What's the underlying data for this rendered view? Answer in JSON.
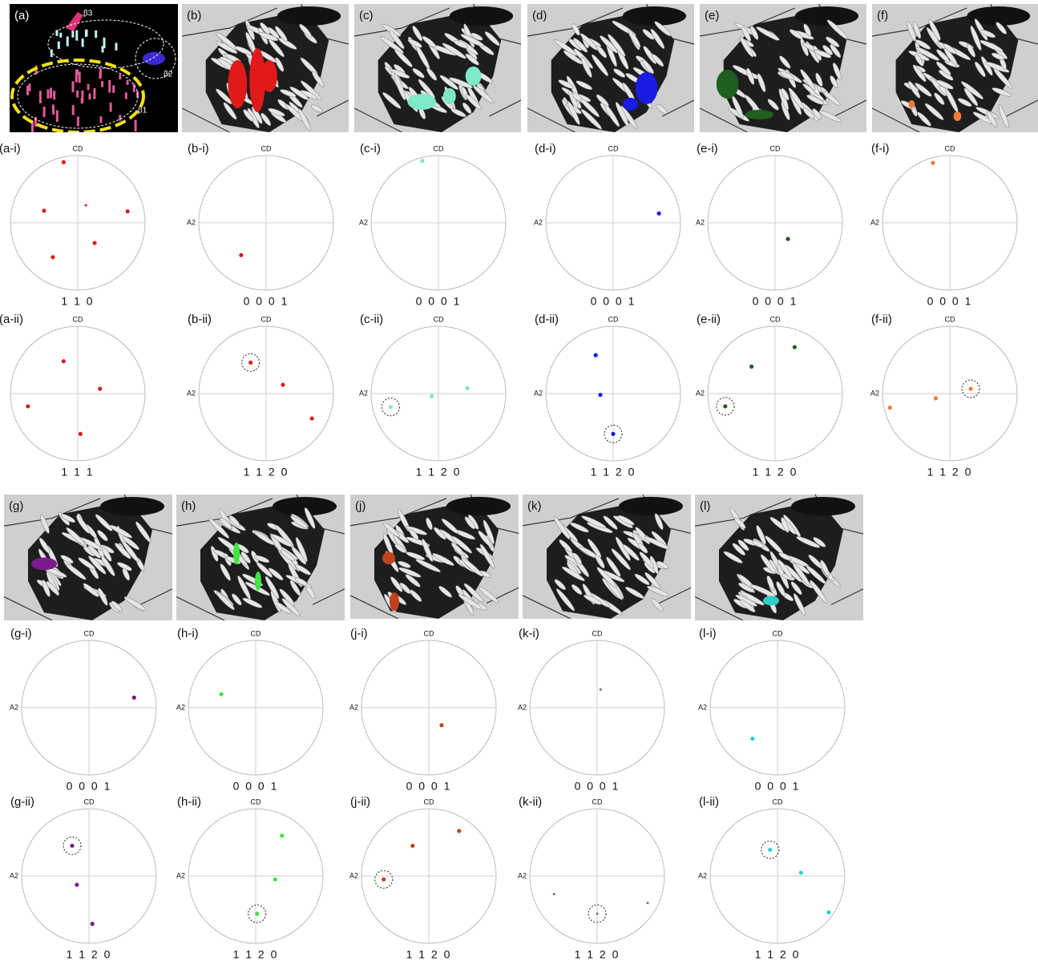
{
  "panels": [
    {
      "label": "(a)",
      "image_text": [
        "β3",
        "β2",
        "β1"
      ],
      "figures": [
        {
          "label": "(a-i)",
          "top": "CD",
          "index": "1 1 0"
        },
        {
          "label": "(a-ii)",
          "top": "CD",
          "index": "1 1 1"
        }
      ]
    },
    {
      "label": "(b)",
      "figures": [
        {
          "label": "(b-i)",
          "top": "CD",
          "left": "A2",
          "index": "0 0 0 1"
        },
        {
          "label": "(b-ii)",
          "top": "CD",
          "left": "A2",
          "index": "1 1 2 0"
        }
      ]
    },
    {
      "label": "(c)",
      "figures": [
        {
          "label": "(c-i)",
          "top": "CD",
          "left": "A2",
          "index": "0 0 0 1"
        },
        {
          "label": "(c-ii)",
          "top": "CD",
          "left": "A2",
          "index": "1 1 2 0"
        }
      ]
    },
    {
      "label": "(d)",
      "figures": [
        {
          "label": "(d-i)",
          "top": "CD",
          "left": "A2",
          "index": "0 0 0 1"
        },
        {
          "label": "(d-ii)",
          "top": "CD",
          "left": "A2",
          "index": "1 1 2 0"
        }
      ]
    },
    {
      "label": "(e)",
      "figures": [
        {
          "label": "(e-i)",
          "top": "CD",
          "left": "A2",
          "index": "0 0 0 1"
        },
        {
          "label": "(e-ii)",
          "top": "CD",
          "left": "A2",
          "index": "1 1 2 0"
        }
      ]
    },
    {
      "label": "(f)",
      "figures": [
        {
          "label": "(f-i)",
          "top": "CD",
          "left": "A2",
          "index": "0 0 0 1"
        },
        {
          "label": "(f-ii)",
          "top": "CD",
          "left": "A2",
          "index": "1 1 2 0"
        }
      ]
    },
    {
      "label": "(g)",
      "figures": [
        {
          "label": "(g-i)",
          "top": "CD",
          "left": "A2",
          "index": "0 0 0 1"
        },
        {
          "label": "(g-ii)",
          "top": "CD",
          "left": "A2",
          "index": "1 1 2 0"
        }
      ]
    },
    {
      "label": "(h)",
      "figures": [
        {
          "label": "(h-i)",
          "top": "CD",
          "left": "A2",
          "index": "0 0 0 1"
        },
        {
          "label": "(h-ii)",
          "top": "CD",
          "left": "A2",
          "index": "1 1 2 0"
        }
      ]
    },
    {
      "label": "(j)",
      "figures": [
        {
          "label": "(j-i)",
          "top": "CD",
          "left": "A2",
          "index": "0 0 0 1"
        },
        {
          "label": "(j-ii)",
          "top": "CD",
          "left": "A2",
          "index": "1 1 2 0"
        }
      ]
    },
    {
      "label": "(k)",
      "figures": [
        {
          "label": "(k-i)",
          "top": "CD",
          "left": "A2",
          "index": "0 0 0 1"
        },
        {
          "label": "(k-ii)",
          "top": "CD",
          "left": "A2",
          "index": "1 1 2 0"
        }
      ]
    },
    {
      "label": "(l)",
      "figures": [
        {
          "label": "(l-i)",
          "top": "CD",
          "left": "A2",
          "index": "0 0 0 1"
        },
        {
          "label": "(l-ii)",
          "top": "CD",
          "left": "A2",
          "index": "1 1 2 0"
        }
      ]
    }
  ]
}
